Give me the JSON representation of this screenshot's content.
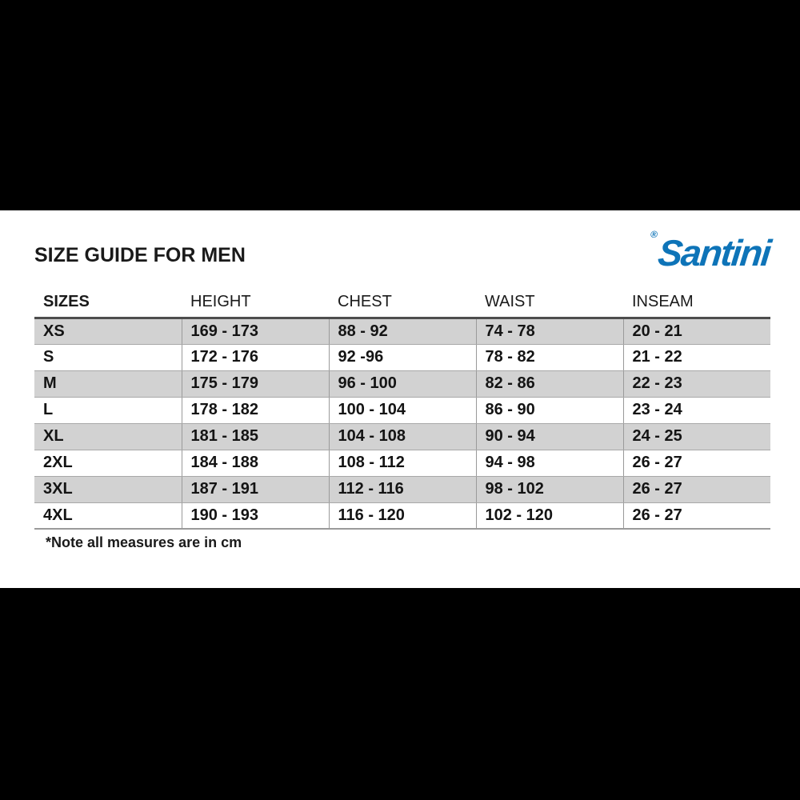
{
  "page": {
    "title": "SIZE GUIDE FOR MEN",
    "brand": "Santini",
    "registered_mark": "®",
    "note": "*Note all measures are in cm"
  },
  "chart_data": {
    "type": "table",
    "title": "SIZE GUIDE FOR MEN",
    "columns": [
      "SIZES",
      "HEIGHT",
      "CHEST",
      "WAIST",
      "INSEAM"
    ],
    "rows": [
      [
        "XS",
        "169 - 173",
        "88 - 92",
        "74 - 78",
        "20 - 21"
      ],
      [
        "S",
        "172 - 176",
        "92 -96",
        "78 - 82",
        "21 - 22"
      ],
      [
        "M",
        "175 - 179",
        "96 - 100",
        "82 - 86",
        "22 - 23"
      ],
      [
        "L",
        "178 - 182",
        "100 - 104",
        "86 - 90",
        "23 - 24"
      ],
      [
        "XL",
        "181 - 185",
        "104 - 108",
        "90 - 94",
        "24 - 25"
      ],
      [
        "2XL",
        "184 - 188",
        "108 - 112",
        "94 - 98",
        "26 - 27"
      ],
      [
        "3XL",
        "187 - 191",
        "112 - 116",
        "98 - 102",
        "26 - 27"
      ],
      [
        "4XL",
        "190 - 193",
        "116 - 120",
        "102 - 120",
        "26 - 27"
      ]
    ],
    "units": "cm",
    "layout": {
      "striped": true,
      "stripe_start": "first-row",
      "header_rule": "dark"
    }
  },
  "colors": {
    "brand_blue": "#0E74B8",
    "row_gray": "#D2D2D2",
    "border_dark": "#4D4D4D",
    "border_light": "#9A9A9A",
    "bar_black": "#000000",
    "text_black": "#1A1A1A"
  }
}
